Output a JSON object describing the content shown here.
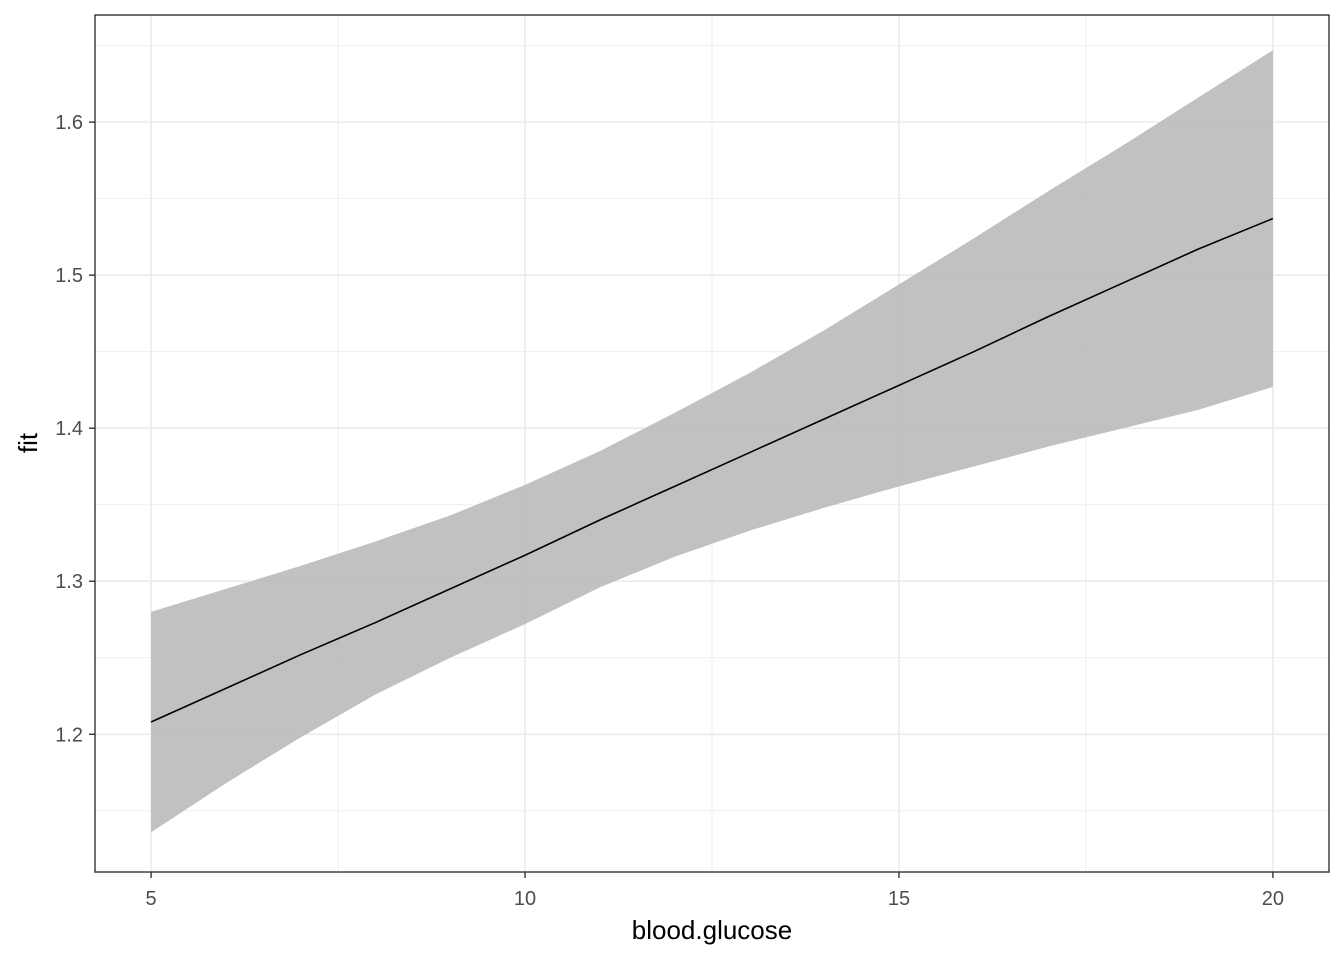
{
  "chart_data": {
    "type": "area",
    "title": "",
    "xlabel": "blood.glucose",
    "ylabel": "fit",
    "xlim": [
      4.25,
      20.75
    ],
    "ylim": [
      1.11,
      1.67
    ],
    "x_ticks": [
      5,
      10,
      15,
      20
    ],
    "y_ticks": [
      1.2,
      1.3,
      1.4,
      1.5,
      1.6
    ],
    "grid": true,
    "legend": "none",
    "colors": {
      "line": "#000000",
      "ribbon": "#bebebe",
      "grid": "#ebebeb",
      "panel_border": "#333333"
    },
    "series": [
      {
        "kind": "line",
        "x": [
          5,
          6,
          7,
          8,
          9,
          10,
          11,
          12,
          13,
          14,
          15,
          16,
          17,
          18,
          19,
          20
        ],
        "y": [
          1.208,
          1.23,
          1.252,
          1.273,
          1.295,
          1.317,
          1.34,
          1.362,
          1.384,
          1.406,
          1.428,
          1.45,
          1.473,
          1.495,
          1.517,
          1.537
        ]
      },
      {
        "kind": "ribbon",
        "x": [
          5,
          6,
          7,
          8,
          9,
          10,
          11,
          12,
          13,
          14,
          15,
          16,
          17,
          18,
          19,
          20
        ],
        "lower": [
          1.136,
          1.168,
          1.198,
          1.226,
          1.25,
          1.272,
          1.296,
          1.316,
          1.333,
          1.348,
          1.362,
          1.375,
          1.388,
          1.4,
          1.412,
          1.427
        ],
        "upper": [
          1.28,
          1.295,
          1.31,
          1.326,
          1.343,
          1.363,
          1.385,
          1.41,
          1.436,
          1.464,
          1.494,
          1.524,
          1.555,
          1.585,
          1.616,
          1.647
        ]
      }
    ]
  }
}
